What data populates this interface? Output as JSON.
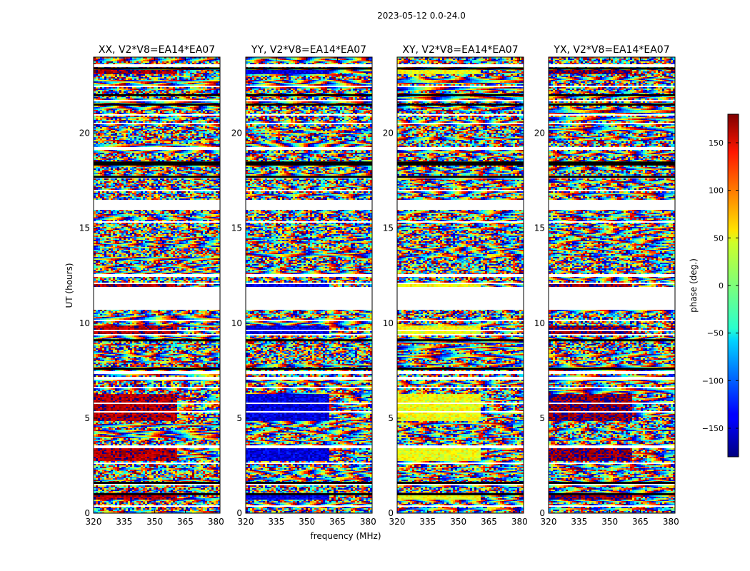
{
  "page": {
    "suptitle": "2023-05-12 0.0-24.0"
  },
  "chart_data": {
    "type": "heatmap",
    "xlabel": "frequency (MHz)",
    "ylabel": "UT (hours)",
    "xlim": [
      320,
      382
    ],
    "ylim": [
      0,
      24
    ],
    "xticks": [
      320,
      335,
      350,
      365,
      380
    ],
    "yticks": [
      0,
      5,
      10,
      15,
      20
    ],
    "colorbar": {
      "label": "phase (deg.)",
      "range": [
        -180,
        180
      ],
      "ticks": [
        150,
        100,
        50,
        0,
        -50,
        -100,
        -150
      ],
      "tick_labels": [
        "150",
        "100",
        "50",
        "0",
        "−50",
        "−100",
        "−150"
      ],
      "colormap": "jet"
    },
    "panels": [
      {
        "title": "XX, V2*V8=EA14*EA07",
        "coherent_phase_deg": 165
      },
      {
        "title": "YY, V2*V8=EA14*EA07",
        "coherent_phase_deg": -145
      },
      {
        "title": "XY, V2*V8=EA14*EA07",
        "coherent_phase_deg": 40
      },
      {
        "title": "YX, V2*V8=EA14*EA07",
        "coherent_phase_deg": 175
      }
    ],
    "flagged_ut_ranges": [
      [
        0.35,
        0.45
      ],
      [
        1.45,
        1.55
      ],
      [
        2.5,
        2.55
      ],
      [
        2.6,
        2.7
      ],
      [
        3.45,
        3.55
      ],
      [
        5.3,
        5.37
      ],
      [
        5.75,
        5.85
      ],
      [
        6.55,
        6.65
      ],
      [
        7.0,
        7.2
      ],
      [
        7.35,
        7.45
      ],
      [
        9.35,
        9.4
      ],
      [
        9.55,
        9.65
      ],
      [
        10.1,
        10.15
      ],
      [
        10.7,
        11.9
      ],
      [
        12.05,
        12.1
      ],
      [
        12.45,
        12.55
      ],
      [
        15.3,
        15.35
      ],
      [
        15.95,
        16.5
      ],
      [
        16.95,
        17.05
      ],
      [
        17.65,
        17.75
      ],
      [
        19.15,
        19.25
      ],
      [
        20.45,
        20.55
      ],
      [
        20.95,
        21.0
      ],
      [
        21.65,
        21.75
      ],
      [
        22.45,
        22.5
      ],
      [
        23.5,
        23.6
      ]
    ],
    "black_lines_ut": [
      1.0,
      1.6,
      7.6,
      9.1,
      17.7,
      18.35,
      18.45,
      21.5,
      22.0,
      23.4
    ],
    "coherent_ut_ranges": [
      [
        0.7,
        1.0
      ],
      [
        2.75,
        3.4
      ],
      [
        4.85,
        6.3
      ],
      [
        9.4,
        9.9
      ],
      [
        11.9,
        12.05
      ],
      [
        23.1,
        23.3
      ]
    ],
    "coherent_freq_max_mhz": 361
  }
}
